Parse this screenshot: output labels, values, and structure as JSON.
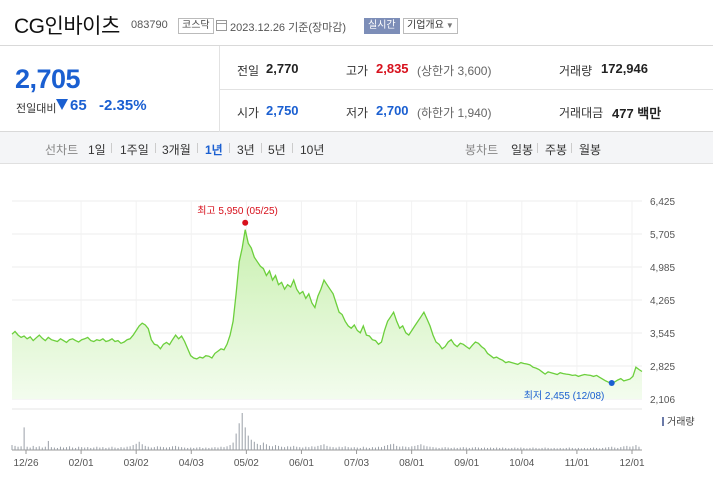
{
  "header": {
    "name": "CG인바이츠",
    "code": "083790",
    "market": "코스닥",
    "date": "2023.12.26",
    "basis": "기준(장마감)",
    "realtime": "실시간",
    "company_info": "기업개요"
  },
  "summary": {
    "price": "2,705",
    "change_label": "전일대비",
    "change": "65",
    "change_rate": "-2.35%",
    "prev_close_label": "전일",
    "prev_close": "2,770",
    "high_label": "고가",
    "high": "2,835",
    "upper_limit": "(상한가 3,600)",
    "volume_label": "거래량",
    "volume": "172,946",
    "open_label": "시가",
    "open": "2,750",
    "low_label": "저가",
    "low": "2,700",
    "lower_limit": "(하한가 1,940)",
    "amount_label": "거래대금",
    "amount": "477 백만"
  },
  "toolbar": {
    "line_label": "선차트",
    "ranges": [
      "1일",
      "1주일",
      "3개월",
      "1년",
      "3년",
      "5년",
      "10년"
    ],
    "active_range": "1년",
    "candle_label": "봉차트",
    "candles": [
      "일봉",
      "주봉",
      "월봉"
    ]
  },
  "colors": {
    "up": "#d7101c",
    "down": "#1a5fd1",
    "line": "#6ccf3c",
    "fill_top": "#c9f0b0",
    "fill_bottom": "#f3fcee"
  },
  "chart_data": {
    "type": "area",
    "y_ticks": [
      "6,425",
      "5,705",
      "4,985",
      "4,265",
      "3,545",
      "2,825",
      "2,106"
    ],
    "ylim": [
      2106,
      6425
    ],
    "x_ticks": [
      "12/26",
      "02/01",
      "03/02",
      "04/03",
      "05/02",
      "06/01",
      "07/03",
      "08/01",
      "09/01",
      "10/04",
      "11/01",
      "12/01"
    ],
    "high_label": "최고 5,950 (05/25)",
    "low_label": "최저 2,455 (12/08)",
    "volume_label": "거래량",
    "series": [
      {
        "values": [
          3520,
          3580,
          3500,
          3450,
          3480,
          3420,
          3460,
          3380,
          3440,
          3500,
          3430,
          3380,
          3450,
          3400,
          3380,
          3360,
          3420,
          3380,
          3340,
          3400,
          3420,
          3380,
          3350,
          3400,
          3420,
          3450,
          3380,
          3360,
          3400,
          3380,
          3420,
          3360,
          3380,
          3420,
          3360,
          3380,
          3320,
          3350,
          3400,
          3420,
          3500,
          3600,
          3700,
          3760,
          3720,
          3640,
          3400,
          3300,
          3280,
          3200,
          3300,
          3340,
          3290,
          3400,
          3500,
          3420,
          3480,
          3360,
          3200,
          3050,
          3000,
          2980,
          3020,
          3000,
          3050,
          3040,
          3000,
          3100,
          3150,
          3200,
          3180,
          3300,
          3500,
          3800,
          4400,
          5100,
          5400,
          5800,
          5500,
          5400,
          5200,
          5100,
          5000,
          4950,
          4800,
          4900,
          4700,
          4800,
          4600,
          4650,
          4500,
          4600,
          4550,
          4700,
          4500,
          4400,
          4450,
          4300,
          4400,
          4200,
          4100,
          4350,
          4500,
          4700,
          4600,
          4500,
          4400,
          4200,
          4000,
          3950,
          3800,
          3700,
          3650,
          3720,
          3600,
          3550,
          3700,
          3500,
          3480,
          3400,
          3380,
          3300,
          3350,
          3600,
          3800,
          3900,
          4000,
          3800,
          3650,
          3700,
          3550,
          3500,
          3600,
          3700,
          3800,
          3900,
          4000,
          3850,
          3700,
          3500,
          3350,
          3300,
          3200,
          3250,
          3350,
          3400,
          3300,
          3250,
          3320,
          3300,
          3250,
          3200,
          3280,
          3350,
          3320,
          3250,
          3200,
          3100,
          3050,
          3000,
          3020,
          2980,
          2950,
          2900,
          2920,
          2900,
          2880,
          2860,
          2900,
          2880,
          2870,
          2850,
          2800,
          2780,
          2750,
          2700,
          2650,
          2700,
          2680,
          2660,
          2640,
          2680,
          2660,
          2650,
          2640,
          2620,
          2630,
          2600,
          2620,
          2640,
          2630,
          2620,
          2600,
          2620,
          2580,
          2540,
          2500,
          2470,
          2455,
          2480,
          2520,
          2550,
          2500,
          2520,
          2540,
          2600,
          2800,
          2750,
          2705
        ]
      }
    ],
    "volume": [
      12,
      10,
      8,
      9,
      55,
      8,
      6,
      10,
      7,
      9,
      6,
      8,
      22,
      7,
      6,
      5,
      8,
      6,
      7,
      9,
      6,
      5,
      8,
      7,
      6,
      7,
      5,
      6,
      8,
      6,
      7,
      5,
      6,
      8,
      6,
      5,
      7,
      6,
      8,
      9,
      12,
      15,
      20,
      14,
      10,
      8,
      6,
      7,
      9,
      8,
      7,
      6,
      7,
      9,
      10,
      8,
      7,
      6,
      5,
      6,
      5,
      6,
      7,
      5,
      6,
      5,
      6,
      7,
      6,
      8,
      7,
      9,
      12,
      18,
      40,
      65,
      90,
      55,
      35,
      25,
      20,
      15,
      12,
      18,
      14,
      10,
      9,
      12,
      10,
      8,
      7,
      9,
      8,
      10,
      8,
      7,
      6,
      8,
      7,
      9,
      8,
      10,
      12,
      14,
      10,
      8,
      7,
      6,
      8,
      7,
      9,
      7,
      6,
      7,
      6,
      5,
      8,
      6,
      5,
      7,
      6,
      8,
      7,
      10,
      12,
      14,
      15,
      10,
      8,
      9,
      8,
      7,
      9,
      10,
      12,
      14,
      11,
      9,
      8,
      7,
      6,
      5,
      6,
      7,
      6,
      5,
      6,
      5,
      6,
      7,
      6,
      5,
      6,
      7,
      6,
      5,
      6,
      5,
      6,
      5,
      6,
      5,
      6,
      5,
      4,
      5,
      6,
      5,
      6,
      5,
      4,
      5,
      6,
      5,
      4,
      5,
      6,
      5,
      4,
      5,
      4,
      5,
      4,
      5,
      6,
      5,
      4,
      5,
      4,
      5,
      4,
      5,
      6,
      5,
      4,
      5,
      6,
      7,
      8,
      6,
      5,
      7,
      9,
      10,
      8,
      9,
      12,
      8
    ]
  }
}
